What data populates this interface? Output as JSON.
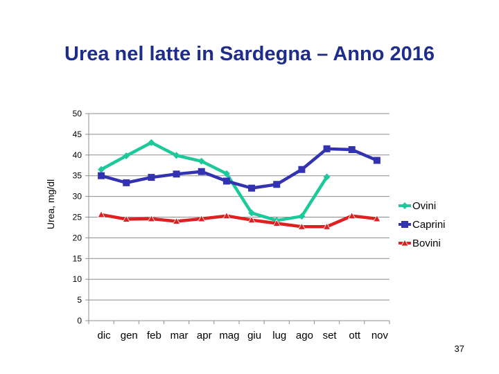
{
  "slide": {
    "title": "Urea nel latte in Sardegna – Anno 2016",
    "page_number": "37"
  },
  "chart_data": {
    "type": "line",
    "title": "Urea nel latte in Sardegna – Anno 2016",
    "xlabel": "",
    "ylabel": "Urea, mg/dl",
    "categories": [
      "dic",
      "gen",
      "feb",
      "mar",
      "apr",
      "mag",
      "giu",
      "lug",
      "ago",
      "set",
      "ott",
      "nov"
    ],
    "ylim": [
      0,
      50
    ],
    "yticks": [
      0,
      5,
      10,
      15,
      20,
      25,
      30,
      35,
      40,
      45,
      50
    ],
    "grid": true,
    "legend_position": "right",
    "series": [
      {
        "name": "Ovini",
        "color": "#1dc89a",
        "marker": "diamond",
        "values": [
          36.5,
          39.8,
          43.0,
          39.9,
          38.5,
          35.5,
          26.0,
          24.2,
          25.2,
          34.7,
          null,
          null
        ]
      },
      {
        "name": "Caprini",
        "color": "#3333b2",
        "marker": "square",
        "values": [
          35.0,
          33.3,
          34.6,
          35.4,
          36.0,
          33.7,
          32.0,
          32.9,
          36.5,
          41.5,
          41.3,
          38.7
        ]
      },
      {
        "name": "Bovini",
        "color": "#e02020",
        "marker": "triangle",
        "values": [
          25.6,
          24.5,
          24.6,
          24.0,
          24.6,
          25.3,
          24.3,
          23.5,
          22.7,
          22.7,
          25.3,
          24.6
        ]
      }
    ]
  }
}
